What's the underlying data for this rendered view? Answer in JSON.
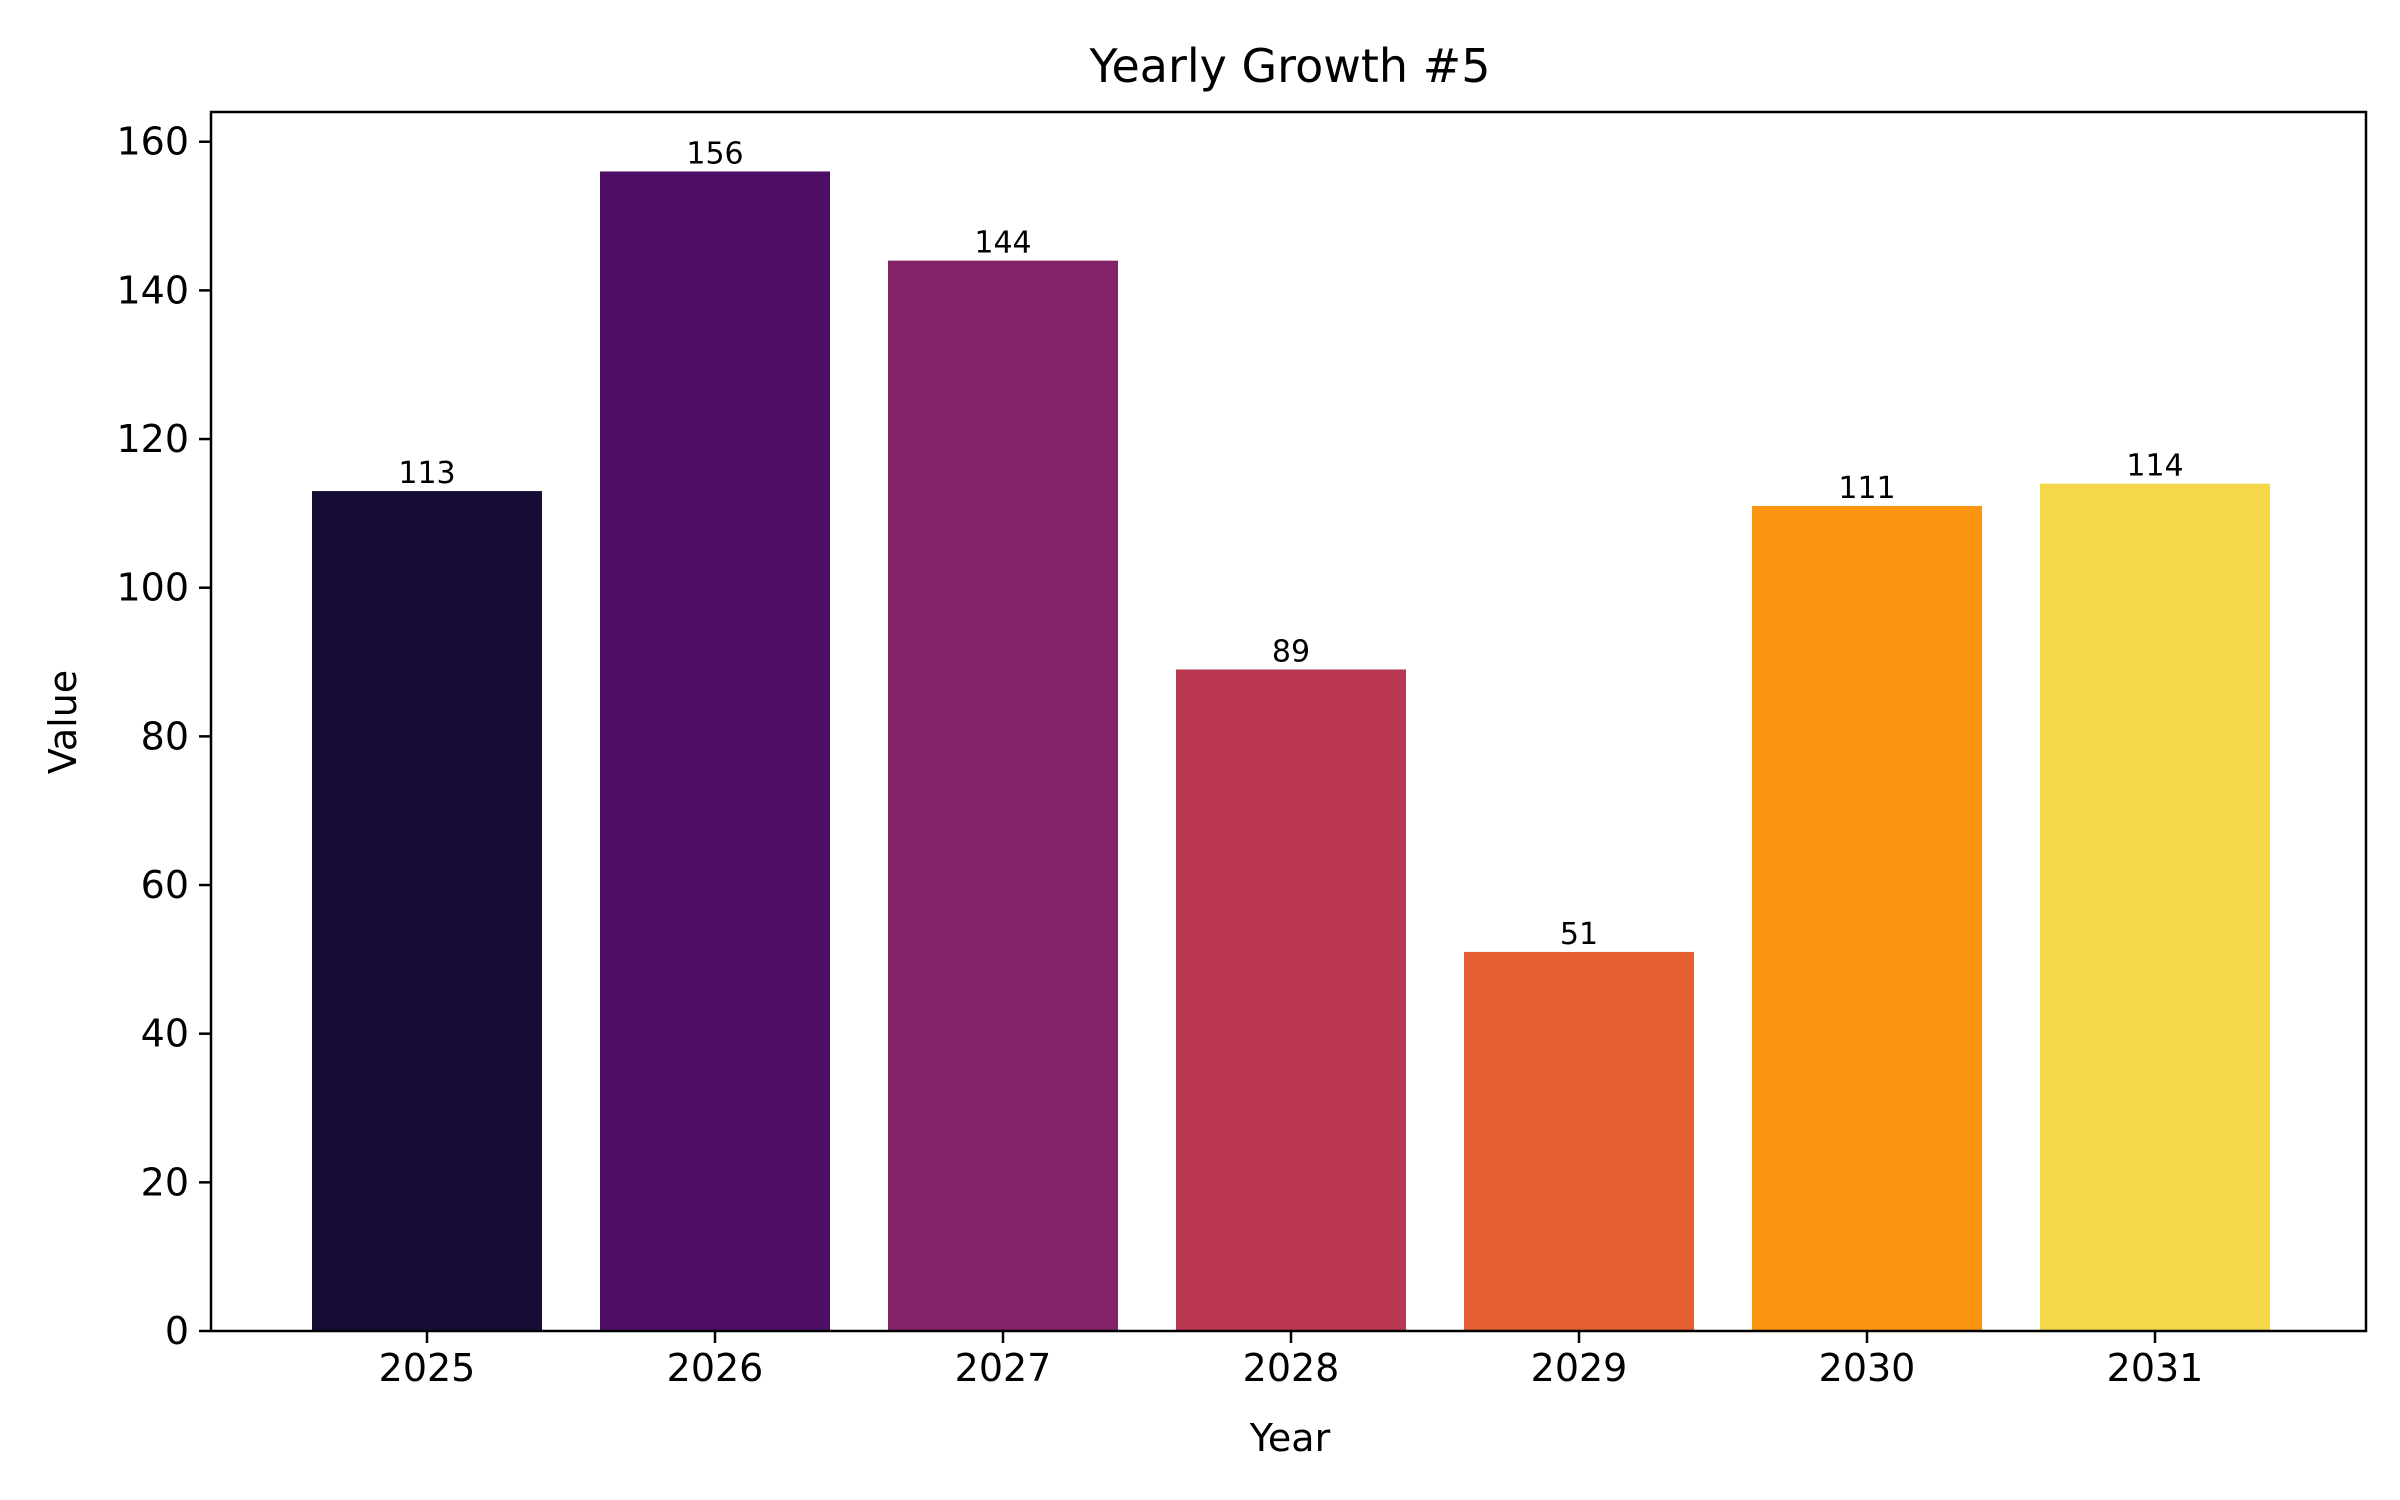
{
  "chart_data": {
    "type": "bar",
    "title": "Yearly Growth #5",
    "xlabel": "Year",
    "ylabel": "Value",
    "categories": [
      "2025",
      "2026",
      "2027",
      "2028",
      "2029",
      "2030",
      "2031"
    ],
    "values": [
      113,
      156,
      144,
      89,
      51,
      111,
      114
    ],
    "data_labels": [
      "113",
      "156",
      "144",
      "89",
      "51",
      "111",
      "114"
    ],
    "colors": [
      "#170d37",
      "#4e0e66",
      "#832268",
      "#ba3752",
      "#e45f32",
      "#f99510",
      "#f5d849"
    ],
    "ylim": [
      0,
      164
    ],
    "yticks": [
      0,
      20,
      40,
      60,
      80,
      100,
      120,
      140,
      160
    ],
    "grid": false,
    "legend": "none"
  }
}
